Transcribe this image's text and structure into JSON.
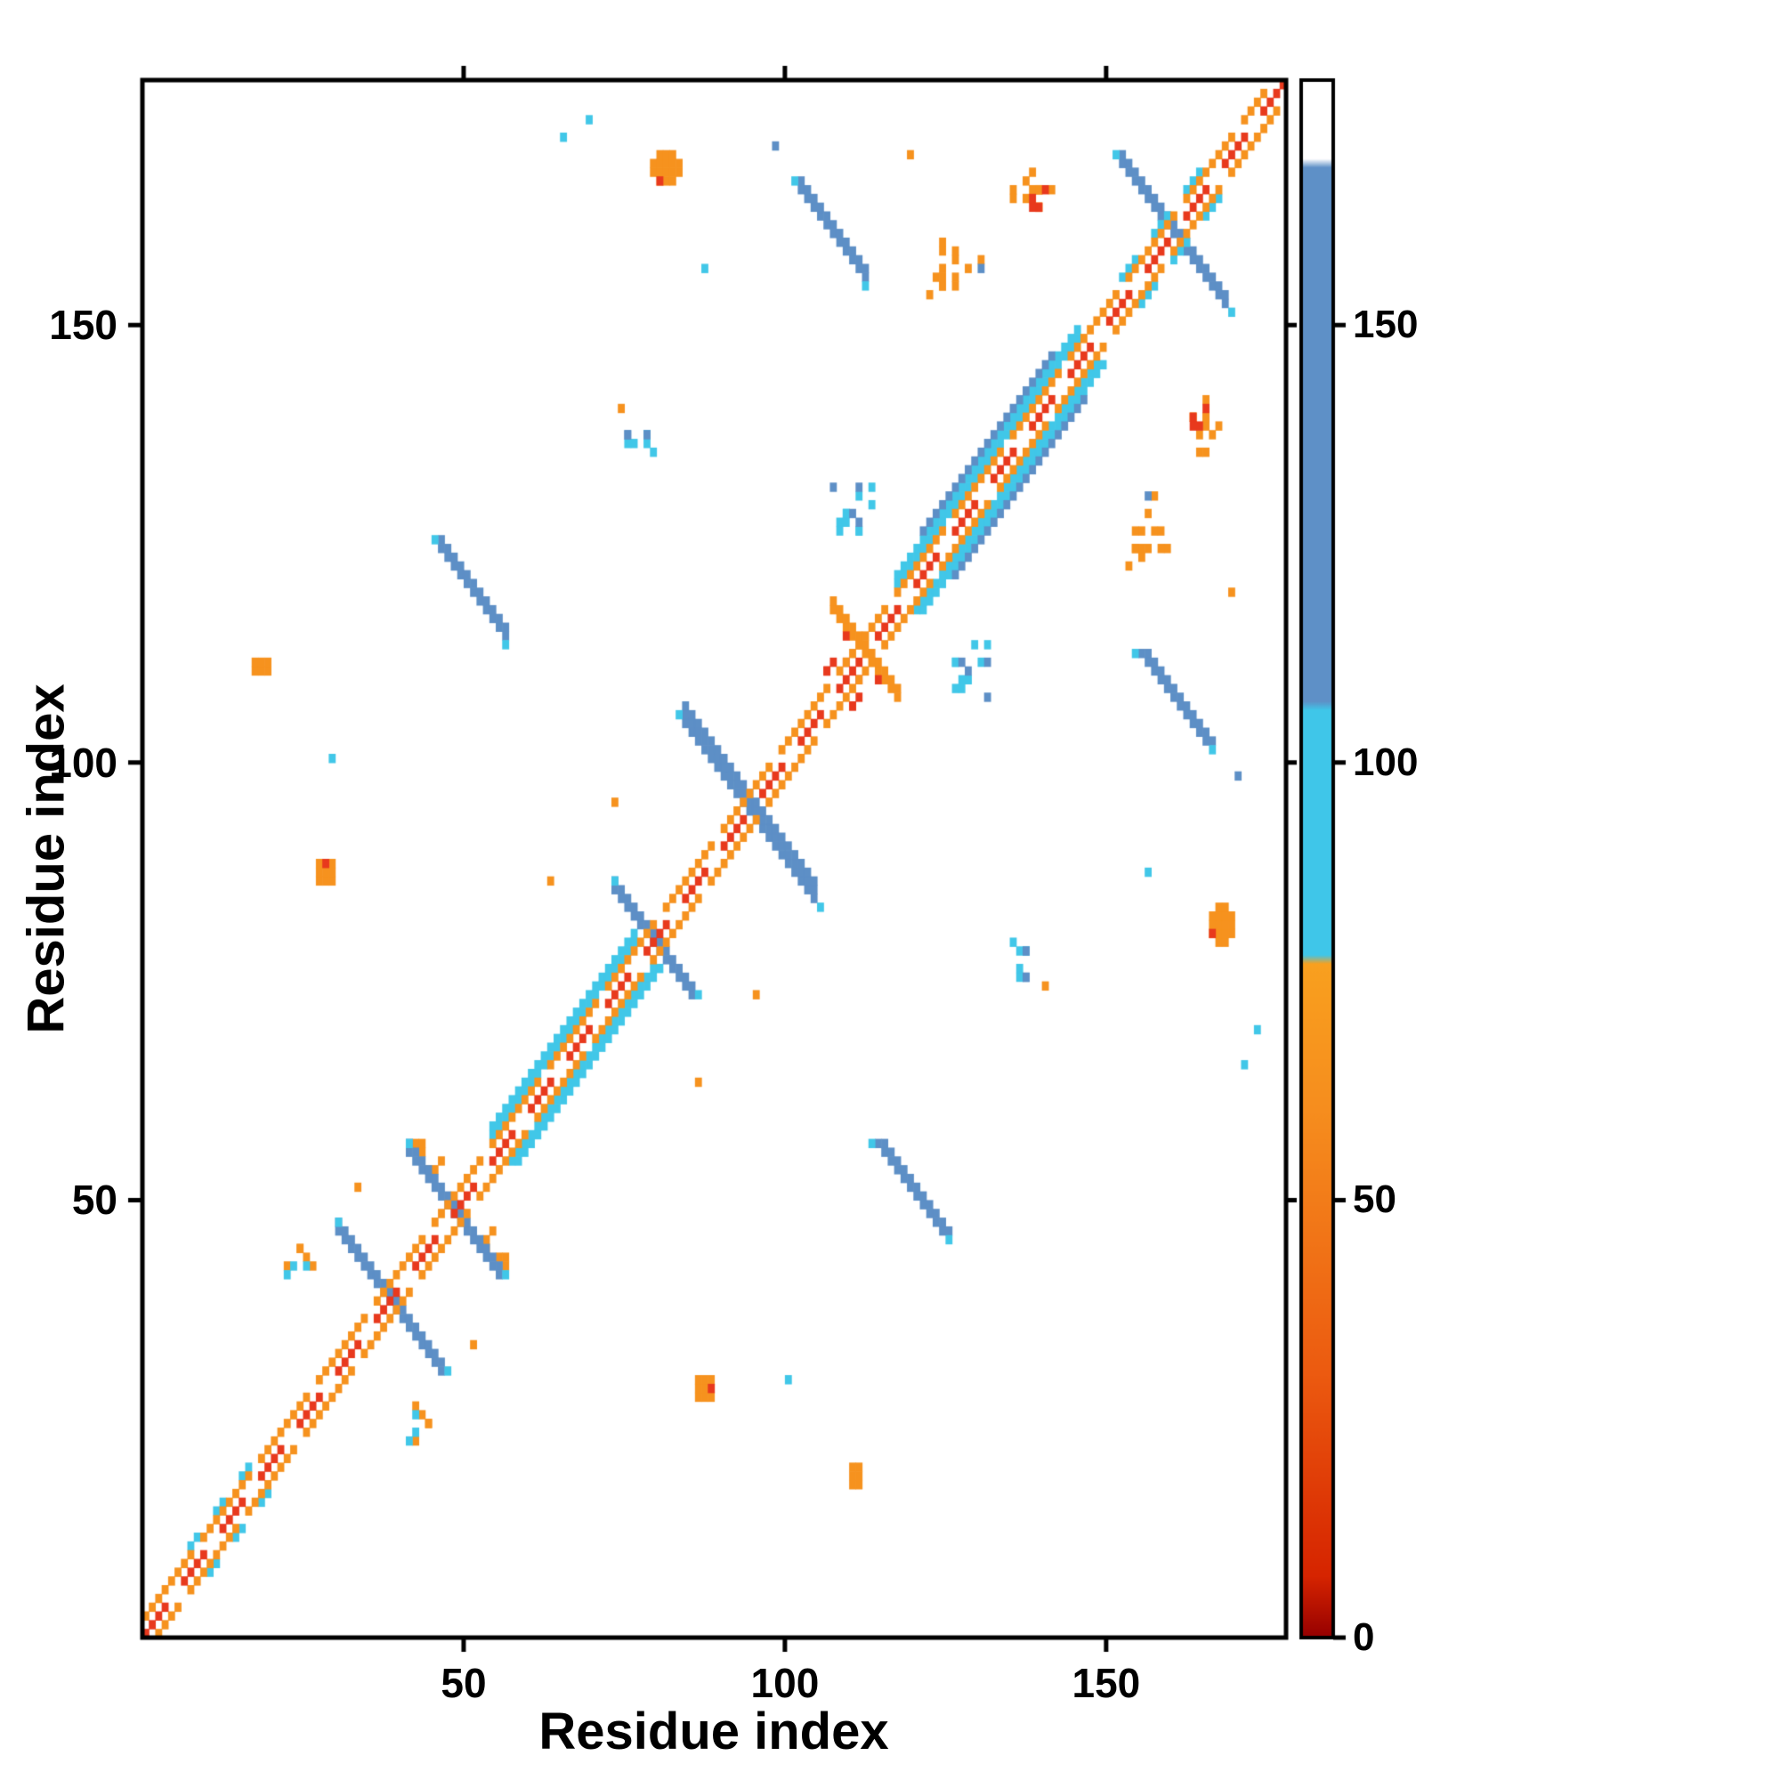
{
  "figure": {
    "background": "#ffffff",
    "border_color": "#000000"
  },
  "chart_data": {
    "type": "heatmap",
    "title": "",
    "xlabel": "Residue index",
    "ylabel": "Residue index",
    "xlim": [
      0,
      178
    ],
    "ylim": [
      0,
      178
    ],
    "xticks": [
      50,
      100,
      150
    ],
    "yticks": [
      50,
      100,
      150
    ],
    "grid": false,
    "description": "Protein residue-residue contact map, symmetric about the main diagonal, cells colored by value on 0-178 colorbar scale",
    "palette": {
      "red": "#e8391d",
      "darkred": "#b40b00",
      "orange": "#f6921e",
      "cyan": "#41c7e8",
      "blue": "#5d8fc6"
    },
    "colorbar": {
      "side": "right",
      "ticks": [
        0,
        50,
        100,
        150
      ],
      "range": [
        0,
        178
      ],
      "stops": [
        {
          "v": 0,
          "c": "#960000"
        },
        {
          "v": 7,
          "c": "#d62400"
        },
        {
          "v": 30,
          "c": "#ec5a10"
        },
        {
          "v": 60,
          "c": "#f68d1e"
        },
        {
          "v": 77,
          "c": "#f9a01f"
        },
        {
          "v": 78,
          "c": "#3fc6e9"
        },
        {
          "v": 106,
          "c": "#3fc6e9"
        },
        {
          "v": 107,
          "c": "#5e90c7"
        },
        {
          "v": 168,
          "c": "#5e90c7"
        },
        {
          "v": 169,
          "c": "#ffffff"
        },
        {
          "v": 178,
          "c": "#ffffff"
        }
      ]
    },
    "features": [
      {
        "k": "scatter",
        "x": 25,
        "y": 44,
        "w": 5,
        "h": 4,
        "n": 5,
        "c": "orange",
        "seed": 19,
        "m": 1
      },
      {
        "k": "scatter",
        "x": 25,
        "y": 44,
        "w": 5,
        "h": 4,
        "n": 3,
        "c": "cyan",
        "seed": 23,
        "m": 1
      },
      {
        "k": "scatter",
        "x": 45,
        "y": 56,
        "w": 6,
        "h": 5,
        "n": 6,
        "c": "orange",
        "seed": 17,
        "m": 1
      },
      {
        "k": "dseg",
        "x": 31,
        "y": 47,
        "n": 17,
        "d": -1,
        "t": 2,
        "c": "blue"
      },
      {
        "k": "dseg",
        "x": 42,
        "y": 56,
        "n": 15,
        "d": -1,
        "t": 2,
        "c": "blue"
      },
      {
        "k": "dseg",
        "x": 74,
        "y": 86,
        "n": 13,
        "d": -1,
        "t": 2,
        "c": "blue"
      },
      {
        "k": "dseg",
        "x": 85,
        "y": 105,
        "n": 21,
        "d": -1,
        "t": 3,
        "c": "blue"
      },
      {
        "k": "dseg",
        "x": 153,
        "y": 169,
        "n": 17,
        "d": -1,
        "t": 2,
        "c": "blue"
      },
      {
        "k": "dseg",
        "x": 108,
        "y": 118,
        "n": 11,
        "d": -1,
        "t": 2,
        "c": "orange"
      },
      {
        "k": "cells",
        "c": "cyan",
        "pts": [
          [
            31,
            48
          ],
          [
            48,
            31
          ],
          [
            84,
            106
          ],
          [
            106,
            84
          ],
          [
            42,
            57
          ],
          [
            57,
            42
          ],
          [
            74,
            87
          ],
          [
            87,
            74
          ],
          [
            152,
            170
          ],
          [
            170,
            152
          ]
        ]
      },
      {
        "k": "scatter",
        "x": 110,
        "y": 113,
        "w": 6,
        "h": 5,
        "n": 5,
        "c": "red",
        "seed": 13,
        "m": 1
      },
      {
        "k": "dseg",
        "x": 47,
        "y": 125,
        "n": 11,
        "d": -1,
        "t": 2,
        "c": "blue",
        "m": 1
      },
      {
        "k": "cells",
        "c": "cyan",
        "pts": [
          [
            46,
            126
          ],
          [
            57,
            114
          ],
          [
            126,
            46
          ],
          [
            114,
            57
          ]
        ]
      },
      {
        "k": "dseg",
        "x": 103,
        "y": 166,
        "n": 11,
        "d": -1,
        "t": 2,
        "c": "blue",
        "m": 1
      },
      {
        "k": "cells",
        "c": "cyan",
        "pts": [
          [
            102,
            167
          ],
          [
            113,
            155
          ],
          [
            167,
            102
          ],
          [
            155,
            113
          ]
        ]
      },
      {
        "k": "blob",
        "x": 82,
        "y": 168,
        "w": 5,
        "h": 4,
        "c": "orange",
        "m": 1
      },
      {
        "k": "cells",
        "c": "red",
        "pts": [
          [
            81,
            167
          ],
          [
            167,
            81
          ]
        ]
      },
      {
        "k": "blob",
        "x": 29,
        "y": 88,
        "w": 3,
        "h": 3,
        "c": "orange",
        "m": 1
      },
      {
        "k": "cells",
        "c": "red",
        "pts": [
          [
            29,
            89
          ],
          [
            89,
            29
          ]
        ]
      },
      {
        "k": "blob",
        "x": 19,
        "y": 111,
        "w": 3,
        "h": 2,
        "c": "orange",
        "m": 1
      },
      {
        "k": "scatter",
        "x": 127,
        "y": 157,
        "w": 8,
        "h": 6,
        "n": 14,
        "c": "orange",
        "seed": 7,
        "m": 1
      },
      {
        "k": "scatter",
        "x": 139,
        "y": 166,
        "w": 8,
        "h": 5,
        "n": 12,
        "c": "orange",
        "seed": 11,
        "m": 1
      },
      {
        "k": "scatter",
        "x": 139,
        "y": 166,
        "w": 6,
        "h": 4,
        "n": 4,
        "c": "red",
        "seed": 3,
        "m": 1
      },
      {
        "k": "scatter",
        "x": 78,
        "y": 137,
        "w": 5,
        "h": 4,
        "n": 6,
        "c": "cyan",
        "seed": 5,
        "m": 1
      },
      {
        "k": "scatter",
        "x": 78,
        "y": 137,
        "w": 5,
        "h": 4,
        "n": 3,
        "c": "blue",
        "seed": 9,
        "m": 1
      },
      {
        "k": "scatter",
        "x": 111,
        "y": 130,
        "w": 7,
        "h": 6,
        "n": 10,
        "c": "cyan",
        "seed": 29,
        "m": 1
      },
      {
        "k": "scatter",
        "x": 111,
        "y": 130,
        "w": 6,
        "h": 5,
        "n": 4,
        "c": "blue",
        "seed": 31,
        "m": 1
      },
      {
        "k": "cells",
        "c": "cyan",
        "pts": [
          [
            66,
            172
          ],
          [
            172,
            66
          ],
          [
            30,
            101
          ],
          [
            101,
            30
          ],
          [
            88,
            157
          ],
          [
            157,
            88
          ],
          [
            70,
            174
          ],
          [
            174,
            70
          ]
        ]
      },
      {
        "k": "cells",
        "c": "orange",
        "pts": [
          [
            34,
            52
          ],
          [
            52,
            34
          ],
          [
            64,
            87
          ],
          [
            87,
            64
          ],
          [
            96,
            74
          ],
          [
            74,
            96
          ],
          [
            120,
            170
          ],
          [
            170,
            120
          ],
          [
            75,
            141
          ],
          [
            141,
            75
          ]
        ]
      },
      {
        "k": "cells",
        "c": "blue",
        "pts": [
          [
            131,
            157
          ],
          [
            157,
            131
          ],
          [
            99,
            171
          ],
          [
            171,
            99
          ]
        ]
      },
      {
        "k": "dseg",
        "x": 55,
        "y": 58,
        "n": 23,
        "d": 1,
        "t": 2,
        "c": "cyan",
        "m": 1
      },
      {
        "k": "dseg",
        "x": 118,
        "y": 121,
        "n": 29,
        "d": 1,
        "t": 2,
        "c": "cyan",
        "m": 1
      },
      {
        "k": "dseg",
        "x": 122,
        "y": 127,
        "n": 21,
        "d": 1,
        "c": "blue",
        "m": 1
      },
      {
        "k": "dseg",
        "x": 8,
        "y": 11,
        "n": 12,
        "d": 1,
        "c": "cyan",
        "dash": [
          2,
          2
        ],
        "m": 1
      },
      {
        "k": "dseg",
        "x": 153,
        "y": 156,
        "n": 15,
        "d": 1,
        "c": "cyan",
        "dash": [
          3,
          2
        ],
        "m": 1
      },
      {
        "k": "dseg",
        "x": 1,
        "y": 3,
        "n": 175,
        "d": 1,
        "c": "orange",
        "dash": [
          8,
          1
        ]
      },
      {
        "k": "dseg",
        "x": 3,
        "y": 1,
        "n": 175,
        "d": 1,
        "c": "orange",
        "dash": [
          8,
          1
        ],
        "ph": 4
      },
      {
        "k": "dseg",
        "x": 1,
        "y": 1,
        "n": 178,
        "d": 1,
        "c": "red",
        "dash": [
          4,
          2
        ]
      }
    ]
  }
}
